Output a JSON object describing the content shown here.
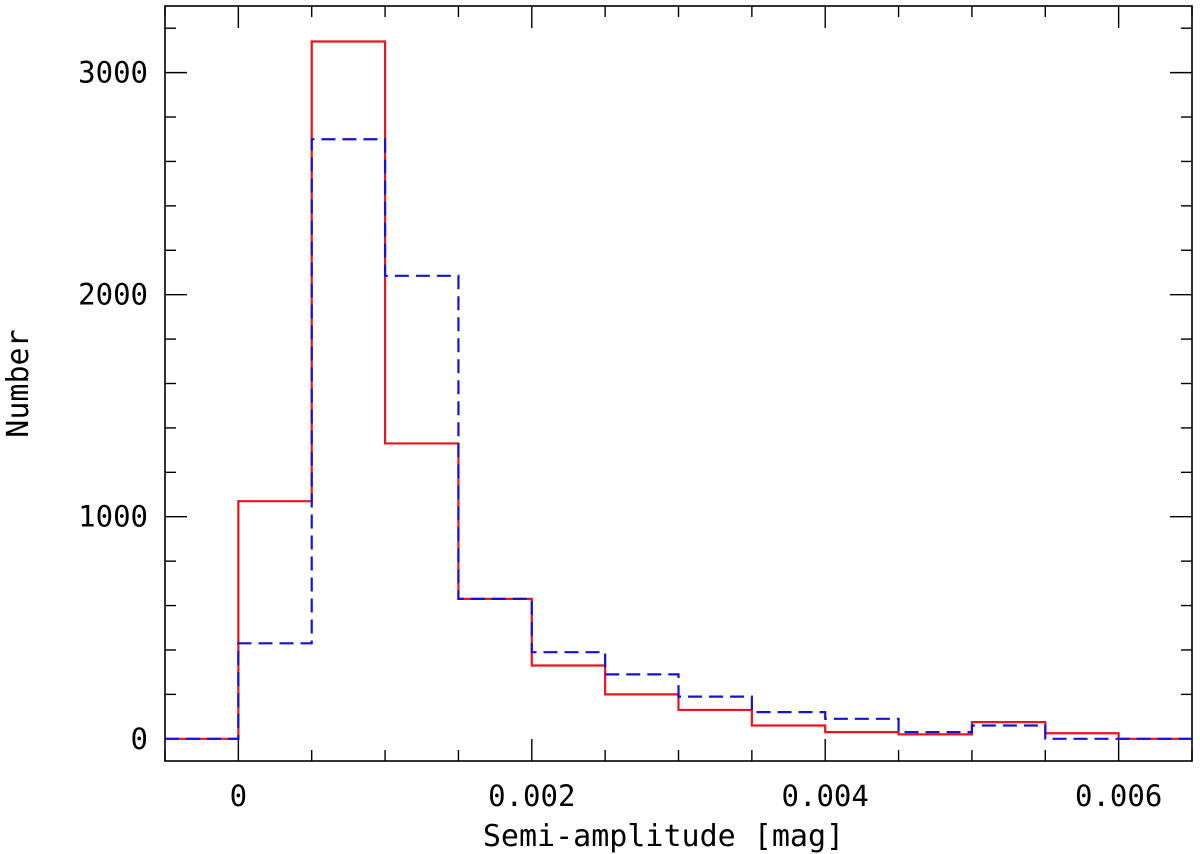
{
  "chart_data": {
    "type": "line",
    "title": "",
    "xlabel": "Semi-amplitude [mag]",
    "ylabel": "Number",
    "xlim": [
      -0.0005,
      0.0065
    ],
    "ylim": [
      -100,
      3300
    ],
    "x_ticks": [
      0,
      0.002,
      0.004,
      0.006
    ],
    "x_tick_labels": [
      "0",
      "0.002",
      "0.004",
      "0.006"
    ],
    "y_ticks": [
      0,
      1000,
      2000,
      3000
    ],
    "y_tick_labels": [
      "0",
      "1000",
      "2000",
      "3000"
    ],
    "x_minor_step": 0.0005,
    "y_minor_step": 200,
    "grid": false,
    "legend": "none",
    "bin_edges": [
      0,
      0.0005,
      0.001,
      0.0015,
      0.002,
      0.0025,
      0.003,
      0.0035,
      0.004,
      0.0045,
      0.005,
      0.0055,
      0.006
    ],
    "series": [
      {
        "color": "#e8141e",
        "style": "solid",
        "values": [
          1070,
          3140,
          1330,
          630,
          330,
          200,
          130,
          60,
          30,
          20,
          75,
          25
        ]
      },
      {
        "color": "#1414d2",
        "style": "dashed",
        "values": [
          430,
          2700,
          2085,
          630,
          390,
          290,
          190,
          120,
          90,
          30,
          60,
          0
        ]
      }
    ]
  }
}
